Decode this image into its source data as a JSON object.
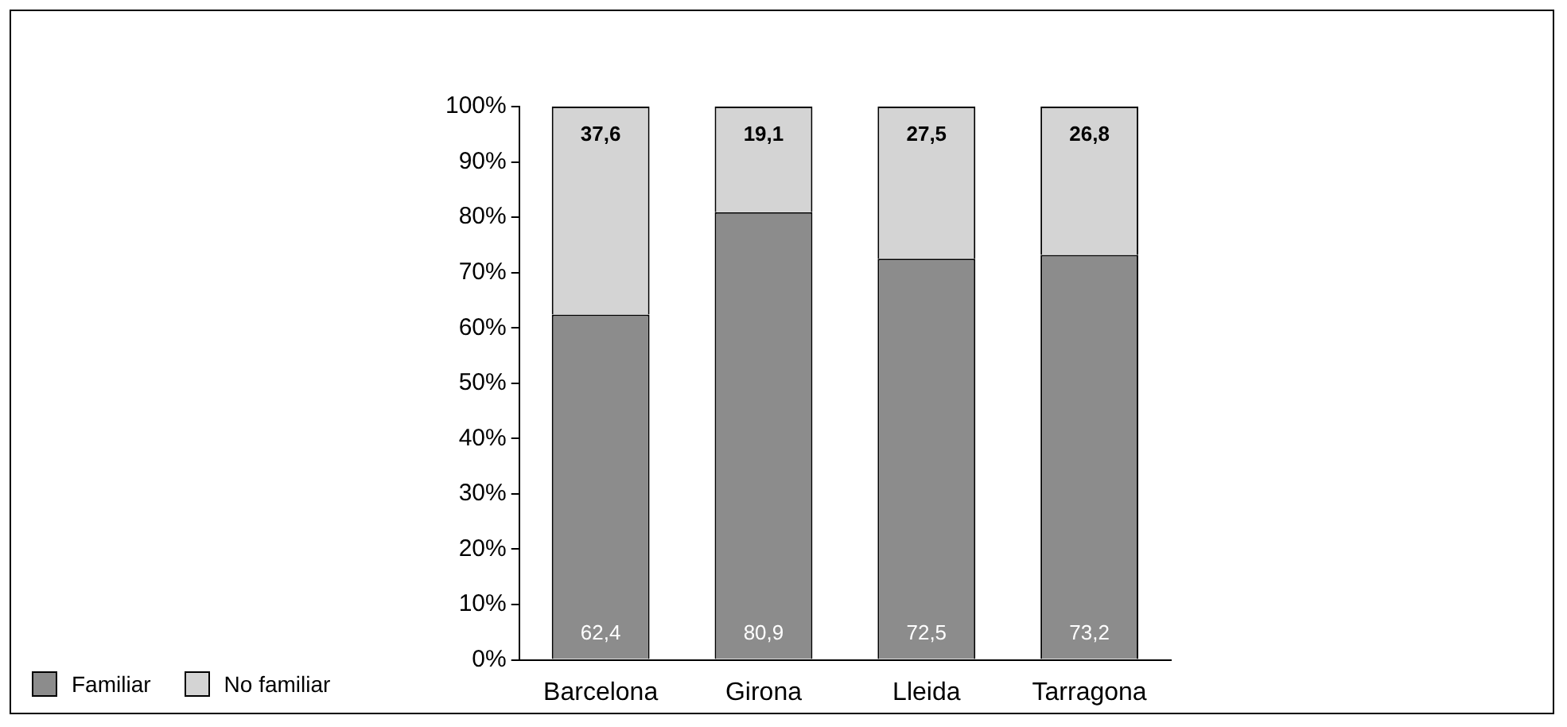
{
  "chart_data": {
    "type": "bar",
    "stacked": true,
    "categories": [
      "Barcelona",
      "Girona",
      "Lleida",
      "Tarragona"
    ],
    "series": [
      {
        "name": "Familiar",
        "color": "#8c8c8c",
        "values": [
          62.4,
          80.9,
          72.5,
          73.2
        ],
        "value_labels": [
          "62,4",
          "80,9",
          "72,5",
          "73,2"
        ]
      },
      {
        "name": "No familiar",
        "color": "#d4d4d4",
        "values": [
          37.6,
          19.1,
          27.5,
          26.8
        ],
        "value_labels": [
          "37,6",
          "19,1",
          "27,5",
          "26,8"
        ]
      }
    ],
    "ylim": [
      0,
      100
    ],
    "yticks": [
      {
        "value": 0,
        "label": "0%"
      },
      {
        "value": 10,
        "label": "10%"
      },
      {
        "value": 20,
        "label": "20%"
      },
      {
        "value": 30,
        "label": "30%"
      },
      {
        "value": 40,
        "label": "40%"
      },
      {
        "value": 50,
        "label": "50%"
      },
      {
        "value": 60,
        "label": "60%"
      },
      {
        "value": 70,
        "label": "70%"
      },
      {
        "value": 80,
        "label": "80%"
      },
      {
        "value": 90,
        "label": "90%"
      },
      {
        "value": 100,
        "label": "100%"
      }
    ],
    "grid": false,
    "legend": "bottom left"
  }
}
